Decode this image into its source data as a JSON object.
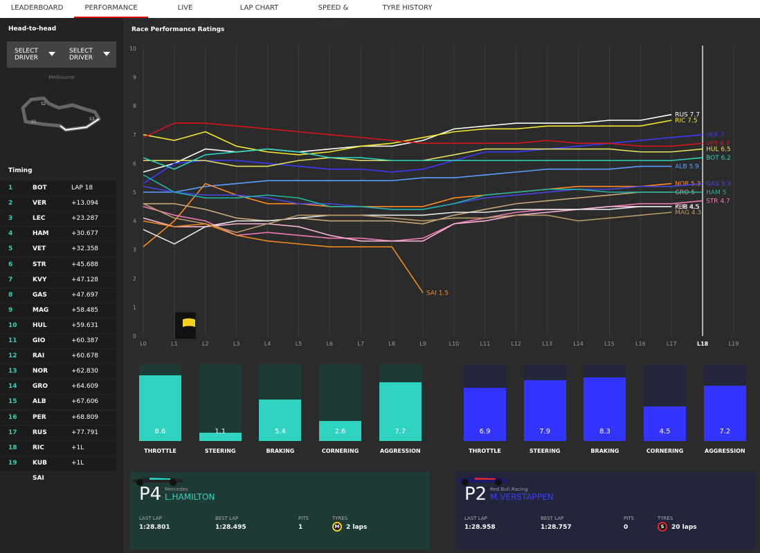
{
  "tabs": [
    "LEADERBOARD",
    "PERFORMANCE",
    "LIVE COMMENTARY",
    "LAP CHART",
    "SPEED & WEATHER",
    "TYRE HISTORY"
  ],
  "sidebar": {
    "heading": "Head-to-head",
    "select_buttons": [
      "SELECT DRIVER",
      "SELECT DRIVER"
    ],
    "track": {
      "name": "Melbourne",
      "sectors": [
        "S1",
        "S2",
        "S3"
      ]
    },
    "timing_title": "Timing",
    "timing": [
      {
        "pos": 1,
        "driver": "BOT",
        "gap": "LAP 18"
      },
      {
        "pos": 2,
        "driver": "VER",
        "gap": "+13.094"
      },
      {
        "pos": 3,
        "driver": "LEC",
        "gap": "+23.287"
      },
      {
        "pos": 4,
        "driver": "HAM",
        "gap": "+30.677"
      },
      {
        "pos": 5,
        "driver": "VET",
        "gap": "+32.358"
      },
      {
        "pos": 6,
        "driver": "STR",
        "gap": "+45.688"
      },
      {
        "pos": 7,
        "driver": "KVY",
        "gap": "+47.128"
      },
      {
        "pos": 8,
        "driver": "GAS",
        "gap": "+47.697"
      },
      {
        "pos": 9,
        "driver": "MAG",
        "gap": "+58.485"
      },
      {
        "pos": 10,
        "driver": "HUL",
        "gap": "+59.631"
      },
      {
        "pos": 11,
        "driver": "GIO",
        "gap": "+60.387"
      },
      {
        "pos": 12,
        "driver": "RAI",
        "gap": "+60.678"
      },
      {
        "pos": 13,
        "driver": "NOR",
        "gap": "+62.830"
      },
      {
        "pos": 14,
        "driver": "GRO",
        "gap": "+64.609"
      },
      {
        "pos": 15,
        "driver": "ALB",
        "gap": "+67.606"
      },
      {
        "pos": 16,
        "driver": "PER",
        "gap": "+68.809"
      },
      {
        "pos": 17,
        "driver": "RUS",
        "gap": "+77.791"
      },
      {
        "pos": 18,
        "driver": "RIC",
        "gap": "+1L"
      },
      {
        "pos": 19,
        "driver": "KUB",
        "gap": "+1L"
      },
      {
        "driver": "SAI"
      }
    ]
  },
  "chart": {
    "type": "line",
    "title": "Race Performance Ratings",
    "categories": [
      "L0",
      "L1",
      "L2",
      "L3",
      "L4",
      "L5",
      "L6",
      "L7",
      "L8",
      "L9",
      "L10",
      "L11",
      "L12",
      "L13",
      "L14",
      "L15",
      "L16",
      "L17",
      "L18",
      "L19"
    ],
    "ylim": [
      0,
      10
    ],
    "yticks": [
      0,
      1,
      2,
      3,
      4,
      5,
      6,
      7,
      8,
      9,
      10
    ],
    "series": [
      {
        "name": "RUS",
        "color": "#ffffff",
        "values": [
          5.7,
          6.0,
          6.5,
          6.4,
          6.5,
          6.4,
          6.5,
          6.6,
          6.6,
          6.8,
          7.2,
          7.3,
          7.4,
          7.4,
          7.4,
          7.5,
          7.5,
          7.7,
          null,
          null
        ]
      },
      {
        "name": "RIC",
        "color": "#f2ea2a",
        "values": [
          7.0,
          6.8,
          7.1,
          6.6,
          6.4,
          6.3,
          6.4,
          6.6,
          6.7,
          6.9,
          7.1,
          7.2,
          7.2,
          7.3,
          7.3,
          7.3,
          7.3,
          7.5,
          null,
          null
        ]
      },
      {
        "name": "VER",
        "color": "#3a3aff",
        "values": [
          5.3,
          6.0,
          6.1,
          6.1,
          6.0,
          5.9,
          5.8,
          5.8,
          5.7,
          5.8,
          6.1,
          6.4,
          6.4,
          6.5,
          6.6,
          6.7,
          6.8,
          6.9,
          7,
          null
        ]
      },
      {
        "name": "VET",
        "color": "#d8141e",
        "values": [
          6.9,
          7.4,
          7.4,
          7.3,
          7.2,
          7.1,
          7.0,
          6.9,
          6.8,
          6.7,
          6.7,
          6.7,
          6.7,
          6.8,
          6.7,
          6.7,
          6.6,
          6.6,
          6.7,
          null
        ]
      },
      {
        "name": "HUL",
        "color": "#e8e060",
        "values": [
          6.1,
          6.1,
          6.1,
          5.9,
          5.9,
          6.1,
          6.2,
          6.1,
          6.1,
          6.1,
          6.3,
          6.5,
          6.5,
          6.5,
          6.5,
          6.5,
          6.4,
          6.4,
          6.5,
          null
        ]
      },
      {
        "name": "BOT",
        "color": "#2ed3c0",
        "values": [
          6.2,
          5.8,
          6.3,
          6.4,
          6.5,
          6.4,
          6.2,
          6.2,
          6.1,
          6.1,
          6.1,
          6.1,
          6.1,
          6.1,
          6.1,
          6.1,
          6.1,
          6.1,
          6.2,
          null
        ]
      },
      {
        "name": "ALB",
        "color": "#5aa0ff",
        "values": [
          5.0,
          5.0,
          5.2,
          5.3,
          5.4,
          5.4,
          5.4,
          5.4,
          5.4,
          5.5,
          5.5,
          5.6,
          5.7,
          5.8,
          5.8,
          5.8,
          5.9,
          5.9,
          null,
          null
        ]
      },
      {
        "name": "NOR",
        "color": "#ff8a1e",
        "values": [
          3.1,
          4.0,
          5.3,
          4.9,
          4.6,
          4.6,
          4.5,
          4.5,
          4.5,
          4.5,
          4.8,
          4.9,
          5.0,
          5.1,
          5.2,
          5.2,
          5.2,
          5.3,
          null,
          null
        ]
      },
      {
        "name": "GAS",
        "color": "#4646e6",
        "values": [
          5.2,
          5.0,
          4.9,
          4.9,
          4.8,
          4.6,
          4.6,
          4.5,
          4.4,
          4.4,
          4.6,
          4.8,
          4.9,
          5.0,
          5.1,
          5.1,
          5.2,
          5.2,
          5.3,
          null
        ]
      },
      {
        "name": "GRO",
        "color": "#c8a87a",
        "values": [
          4.6,
          4.6,
          4.4,
          4.1,
          4.0,
          4.1,
          4.0,
          4.0,
          4.0,
          3.9,
          4.2,
          4.4,
          4.6,
          4.7,
          4.8,
          4.9,
          5.0,
          5,
          null,
          null
        ]
      },
      {
        "name": "HAM",
        "color": "#22b3a3",
        "values": [
          5.6,
          5.0,
          4.8,
          4.8,
          4.9,
          4.8,
          4.5,
          4.5,
          4.4,
          4.4,
          4.6,
          4.9,
          5.0,
          5.1,
          5.1,
          5.0,
          5.0,
          5.0,
          5,
          null
        ]
      },
      {
        "name": "STR",
        "color": "#f07ab8",
        "values": [
          4.5,
          4.2,
          4.0,
          3.5,
          3.6,
          3.5,
          3.4,
          3.4,
          3.3,
          3.4,
          3.9,
          4.1,
          4.3,
          4.4,
          4.4,
          4.5,
          4.6,
          4.6,
          4.7,
          null
        ]
      },
      {
        "name": "PER",
        "color": "#f8b4d8",
        "values": [
          4.1,
          3.8,
          3.8,
          3.9,
          3.9,
          3.8,
          3.5,
          3.3,
          3.3,
          3.3,
          3.9,
          4.0,
          4.2,
          4.3,
          4.4,
          4.5,
          4.5,
          4.5,
          null,
          null
        ]
      },
      {
        "name": "KUB",
        "color": "#e6e6e6",
        "values": [
          3.7,
          3.2,
          3.8,
          4.0,
          4.0,
          4.1,
          4.2,
          4.2,
          4.2,
          4.2,
          4.3,
          4.3,
          4.4,
          4.4,
          4.4,
          4.4,
          4.5,
          4.5,
          null,
          null
        ]
      },
      {
        "name": "MAG",
        "color": "#b89a6a",
        "values": [
          4.6,
          4.1,
          3.9,
          3.6,
          3.9,
          4.2,
          4.2,
          4.2,
          4.1,
          4.0,
          4.1,
          4.1,
          4.2,
          4.2,
          4.0,
          4.1,
          4.2,
          4.3,
          null,
          null
        ]
      },
      {
        "name": "SAI",
        "color": "#f08c1e",
        "values": [
          4.0,
          3.8,
          3.9,
          3.5,
          3.3,
          3.2,
          3.1,
          3.1,
          3.1,
          1.5,
          null,
          null,
          null,
          null,
          null,
          null,
          null,
          null,
          null,
          null
        ]
      }
    ]
  },
  "comparison": [
    {
      "color": "#2ed3c0",
      "track_color": "#1e3a36",
      "metrics": [
        {
          "label": "THROTTLE",
          "value": 8.6
        },
        {
          "label": "STEERING",
          "value": 1.1
        },
        {
          "label": "BRAKING",
          "value": 5.4
        },
        {
          "label": "CORNERING",
          "value": 2.6
        },
        {
          "label": "AGGRESSION",
          "value": 7.7
        }
      ]
    },
    {
      "color": "#3434ff",
      "track_color": "#23263a",
      "metrics": [
        {
          "label": "THROTTLE",
          "value": 6.9
        },
        {
          "label": "STEERING",
          "value": 7.9
        },
        {
          "label": "BRAKING",
          "value": 8.3
        },
        {
          "label": "CORNERING",
          "value": 4.5
        },
        {
          "label": "AGGRESSION",
          "value": 7.2
        }
      ]
    }
  ],
  "stat_labels": [
    "LAST LAP",
    "BEST LAP",
    "PITS",
    "TYRES"
  ],
  "cards": [
    {
      "position": "P4",
      "team": "Mercedes",
      "driver": "L.HAMILTON",
      "color": "#2ed3c0",
      "bg": "#1f3b36",
      "last_lap": "1:28.801",
      "best_lap": "1:28.495",
      "pits": 1,
      "tyre": "M",
      "tyre_color": "#f2d21e",
      "tyre_laps": "2 laps"
    },
    {
      "position": "P2",
      "team": "Red Bull Racing",
      "driver": "M.VERSTAPPEN",
      "color": "#3a3aff",
      "bg": "#23253a",
      "last_lap": "1:28.958",
      "best_lap": "1:28.757",
      "pits": 0,
      "tyre": "S",
      "tyre_color": "#e8242c",
      "tyre_laps": "20 laps"
    }
  ]
}
